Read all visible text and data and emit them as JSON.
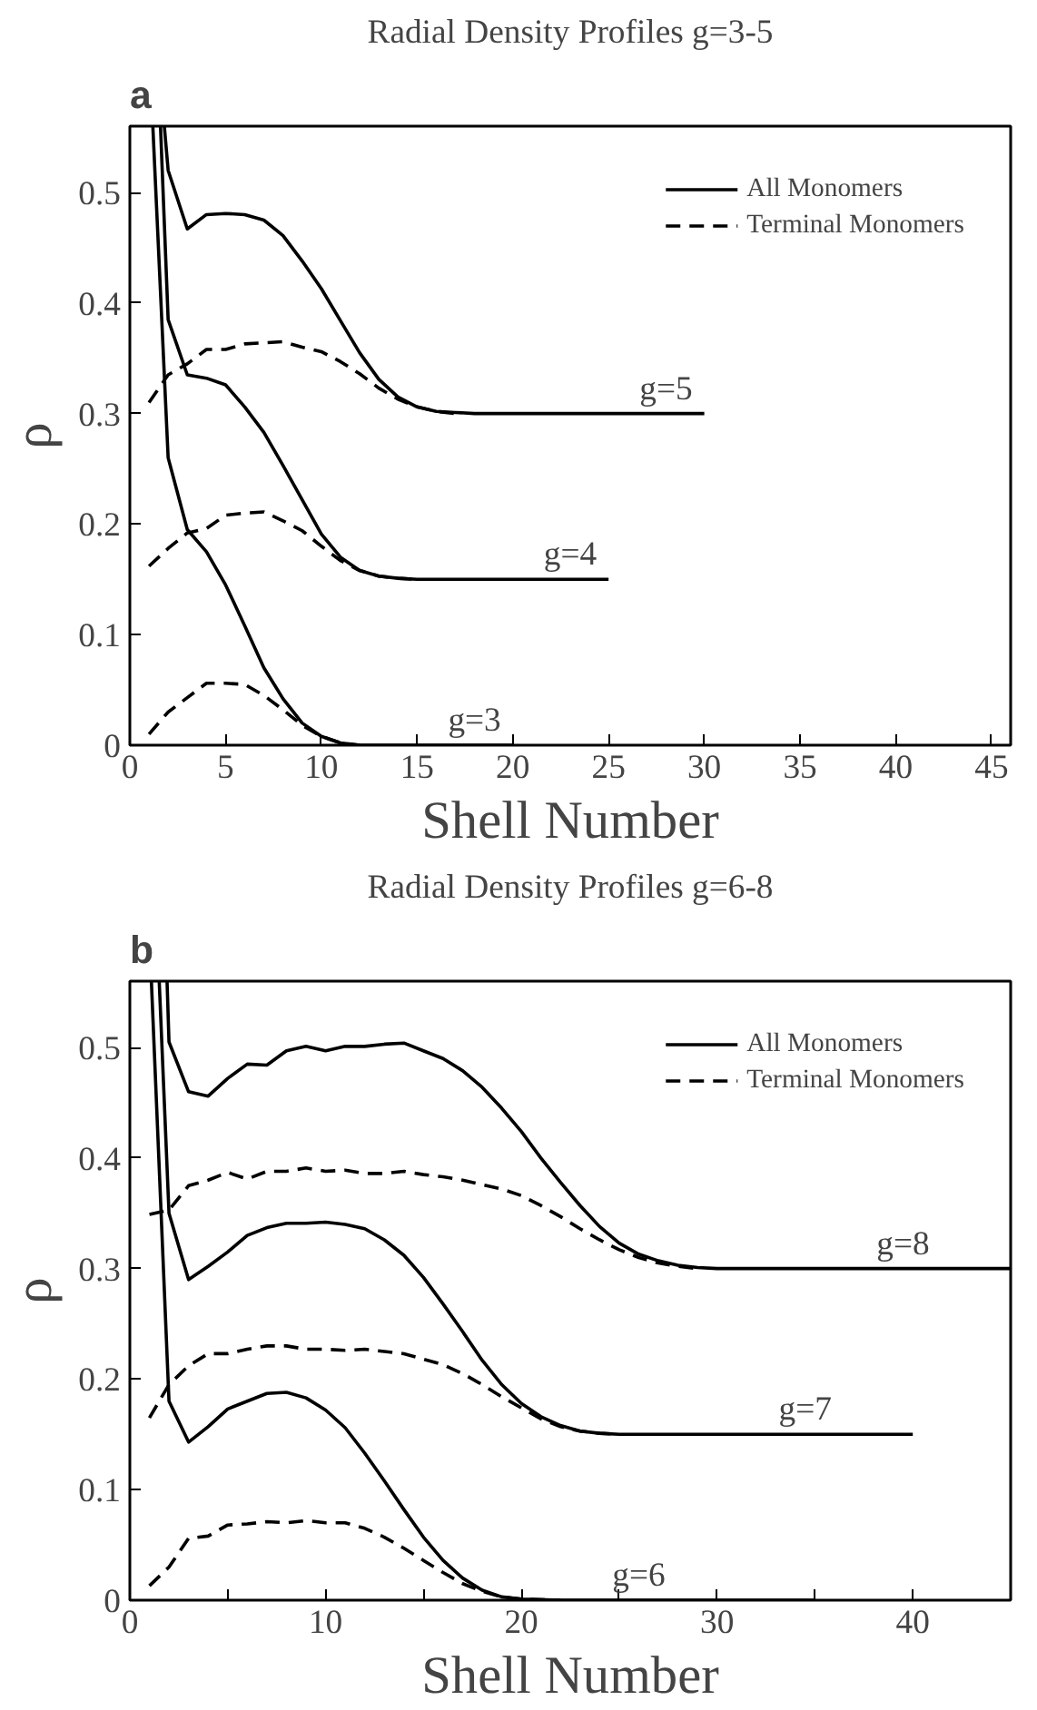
{
  "chart_data": [
    {
      "type": "line",
      "title": "Radial Density Profiles g=3-5",
      "xlabel": "Shell Number",
      "ylabel": "ρ",
      "xlim": [
        0,
        46
      ],
      "ylim": [
        0,
        0.56
      ],
      "xticks": [
        0,
        5,
        10,
        15,
        20,
        25,
        30,
        35,
        40,
        45
      ],
      "yticks": [
        0,
        0.1,
        0.2,
        0.3,
        0.4,
        0.5
      ],
      "grid": false,
      "legend": "top right",
      "annotations": [
        "a",
        {
          "text": "g=3",
          "x": 18,
          "y": 0
        },
        {
          "text": "g=4",
          "x": 23,
          "y": 0.15
        },
        {
          "text": "g=5",
          "x": 28,
          "y": 0.3
        }
      ],
      "series": [
        {
          "name": "All Monomers",
          "color": "#000000",
          "line_style": "solid",
          "x": [
            1.2,
            2,
            3,
            4,
            5,
            6,
            7,
            8,
            9,
            10,
            11,
            12,
            15,
            20
          ],
          "values": [
            0.56,
            0.26,
            0.195,
            0.175,
            0.145,
            0.108,
            0.07,
            0.042,
            0.02,
            0.008,
            0.002,
            0,
            0,
            0
          ]
        },
        {
          "name": "Terminal Monomers",
          "color": "#000000",
          "line_style": "dashed",
          "x": [
            1,
            2,
            3,
            4,
            5,
            6,
            7,
            8,
            9,
            10,
            11,
            12
          ],
          "values": [
            0.01,
            0.03,
            0.043,
            0.056,
            0.056,
            0.055,
            0.045,
            0.032,
            0.018,
            0.008,
            0.002,
            0
          ]
        },
        {
          "color": "#000000",
          "line_style": "solid",
          "x": [
            1.6,
            2,
            3,
            4,
            5,
            6,
            7,
            8,
            9,
            10,
            11,
            12,
            13,
            14,
            15,
            25
          ],
          "values": [
            0.56,
            0.385,
            0.335,
            0.332,
            0.326,
            0.306,
            0.283,
            0.253,
            0.222,
            0.191,
            0.17,
            0.158,
            0.153,
            0.151,
            0.15,
            0.15
          ]
        },
        {
          "color": "#000000",
          "line_style": "dashed",
          "x": [
            1,
            2,
            3,
            4,
            5,
            6,
            7,
            8,
            9,
            10,
            11,
            12,
            13,
            14,
            15
          ],
          "values": [
            0.162,
            0.178,
            0.192,
            0.196,
            0.208,
            0.21,
            0.211,
            0.203,
            0.194,
            0.18,
            0.167,
            0.158,
            0.153,
            0.151,
            0.15
          ]
        },
        {
          "color": "#000000",
          "line_style": "solid",
          "x": [
            1.8,
            2,
            3,
            4,
            5,
            6,
            7,
            8,
            9,
            10,
            11,
            12,
            13,
            14,
            15,
            16,
            17,
            18,
            30
          ],
          "values": [
            0.56,
            0.52,
            0.467,
            0.48,
            0.481,
            0.48,
            0.475,
            0.461,
            0.438,
            0.413,
            0.384,
            0.355,
            0.331,
            0.315,
            0.306,
            0.302,
            0.301,
            0.3,
            0.3
          ]
        },
        {
          "color": "#000000",
          "line_style": "dashed",
          "x": [
            1,
            2,
            3,
            4,
            5,
            6,
            7,
            8,
            9,
            10,
            11,
            12,
            13,
            14,
            15,
            16,
            17
          ],
          "values": [
            0.31,
            0.335,
            0.345,
            0.358,
            0.358,
            0.363,
            0.364,
            0.365,
            0.36,
            0.356,
            0.347,
            0.336,
            0.323,
            0.313,
            0.306,
            0.302,
            0.3
          ]
        }
      ]
    },
    {
      "type": "line",
      "title": "Radial Density Profiles g=6-8",
      "xlabel": "Shell Number",
      "ylabel": "ρ",
      "xlim": [
        0,
        45
      ],
      "ylim": [
        0,
        0.56
      ],
      "xticks": [
        0,
        {
          "value": 5,
          "label": null
        },
        10,
        {
          "value": 15,
          "label": null
        },
        20,
        {
          "value": 25,
          "label": null
        },
        30,
        {
          "value": 35,
          "label": null
        },
        40
      ],
      "yticks": [
        0,
        0.1,
        0.2,
        0.3,
        0.4,
        0.5
      ],
      "grid": false,
      "legend": "top right",
      "annotations": [
        "b",
        {
          "text": "g=6",
          "x": 26,
          "y": 0
        },
        {
          "text": "g=7",
          "x": 34.5,
          "y": 0.15
        },
        {
          "text": "g=8",
          "x": 39.5,
          "y": 0.3
        }
      ],
      "series": [
        {
          "name": "All Monomers",
          "color": "#000000",
          "line_style": "solid",
          "x": [
            1.1,
            2,
            3,
            4,
            5,
            6,
            7,
            8,
            9,
            10,
            11,
            12,
            13,
            14,
            15,
            16,
            17,
            18,
            19,
            20,
            22,
            35
          ],
          "values": [
            0.56,
            0.18,
            0.143,
            0.157,
            0.173,
            0.18,
            0.187,
            0.188,
            0.183,
            0.172,
            0.156,
            0.133,
            0.108,
            0.082,
            0.057,
            0.036,
            0.02,
            0.009,
            0.003,
            0.001,
            0,
            0
          ]
        },
        {
          "name": "Terminal Monomers",
          "color": "#000000",
          "line_style": "dashed",
          "x": [
            1,
            2,
            3,
            4,
            5,
            6,
            7,
            8,
            9,
            10,
            11,
            12,
            13,
            14,
            15,
            16,
            17,
            18,
            19,
            20,
            22
          ],
          "values": [
            0.013,
            0.03,
            0.056,
            0.058,
            0.068,
            0.069,
            0.071,
            0.07,
            0.072,
            0.07,
            0.07,
            0.065,
            0.057,
            0.047,
            0.036,
            0.025,
            0.015,
            0.008,
            0.003,
            0.001,
            0
          ]
        },
        {
          "color": "#000000",
          "line_style": "solid",
          "x": [
            1.5,
            2,
            3,
            4,
            5,
            6,
            7,
            8,
            9,
            10,
            11,
            12,
            13,
            14,
            15,
            16,
            17,
            18,
            19,
            20,
            21,
            22,
            23,
            24,
            25,
            40
          ],
          "values": [
            0.56,
            0.35,
            0.29,
            0.302,
            0.315,
            0.33,
            0.337,
            0.341,
            0.341,
            0.342,
            0.34,
            0.336,
            0.326,
            0.312,
            0.292,
            0.268,
            0.243,
            0.217,
            0.195,
            0.178,
            0.166,
            0.158,
            0.153,
            0.151,
            0.15,
            0.15
          ]
        },
        {
          "color": "#000000",
          "line_style": "dashed",
          "x": [
            1,
            2,
            3,
            4,
            5,
            6,
            7,
            8,
            9,
            10,
            11,
            12,
            13,
            14,
            15,
            16,
            17,
            18,
            19,
            20,
            21,
            22,
            23,
            24,
            25
          ],
          "values": [
            0.165,
            0.195,
            0.212,
            0.223,
            0.223,
            0.227,
            0.23,
            0.23,
            0.227,
            0.227,
            0.226,
            0.227,
            0.225,
            0.223,
            0.218,
            0.213,
            0.205,
            0.195,
            0.184,
            0.174,
            0.164,
            0.157,
            0.153,
            0.151,
            0.15
          ]
        },
        {
          "color": "#000000",
          "line_style": "solid",
          "x": [
            1.9,
            2,
            3,
            4,
            5,
            6,
            7,
            8,
            9,
            10,
            11,
            12,
            13,
            14,
            15,
            16,
            17,
            18,
            19,
            20,
            21,
            22,
            23,
            24,
            25,
            26,
            27,
            28,
            29,
            30,
            45
          ],
          "values": [
            0.56,
            0.505,
            0.46,
            0.456,
            0.472,
            0.485,
            0.484,
            0.497,
            0.501,
            0.497,
            0.501,
            0.501,
            0.503,
            0.504,
            0.497,
            0.49,
            0.479,
            0.464,
            0.445,
            0.424,
            0.4,
            0.378,
            0.357,
            0.338,
            0.323,
            0.313,
            0.307,
            0.303,
            0.301,
            0.3,
            0.3
          ]
        },
        {
          "color": "#000000",
          "line_style": "dashed",
          "x": [
            1,
            2,
            3,
            4,
            5,
            6,
            7,
            8,
            9,
            10,
            11,
            12,
            13,
            14,
            15,
            16,
            17,
            18,
            19,
            20,
            21,
            22,
            23,
            24,
            25,
            26,
            27,
            28,
            29
          ],
          "values": [
            0.349,
            0.353,
            0.375,
            0.38,
            0.387,
            0.381,
            0.388,
            0.388,
            0.391,
            0.388,
            0.389,
            0.386,
            0.386,
            0.388,
            0.385,
            0.383,
            0.38,
            0.376,
            0.372,
            0.366,
            0.357,
            0.347,
            0.336,
            0.326,
            0.317,
            0.31,
            0.305,
            0.302,
            0.3
          ]
        }
      ]
    }
  ]
}
